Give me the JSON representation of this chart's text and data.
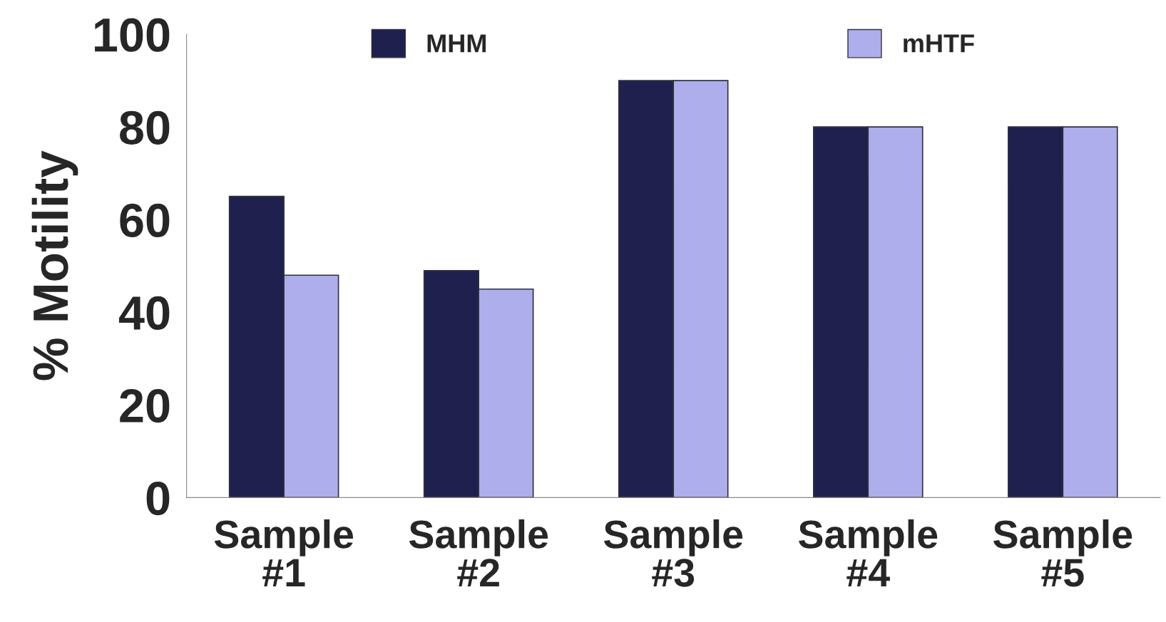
{
  "chart_data": {
    "type": "bar",
    "ylabel": "% Motility",
    "categories": [
      "Sample #1",
      "Sample #2",
      "Sample #3",
      "Sample #4",
      "Sample #5"
    ],
    "series": [
      {
        "name": "MHM",
        "color": "#20204f",
        "values": [
          65,
          49,
          90,
          80,
          80
        ]
      },
      {
        "name": "mHTF",
        "color": "#aeaeec",
        "values": [
          48,
          45,
          90,
          80,
          80
        ]
      }
    ],
    "ylim": [
      0,
      100
    ],
    "yticks": [
      0,
      20,
      40,
      60,
      80,
      100
    ],
    "grid": false,
    "legend": "top"
  }
}
